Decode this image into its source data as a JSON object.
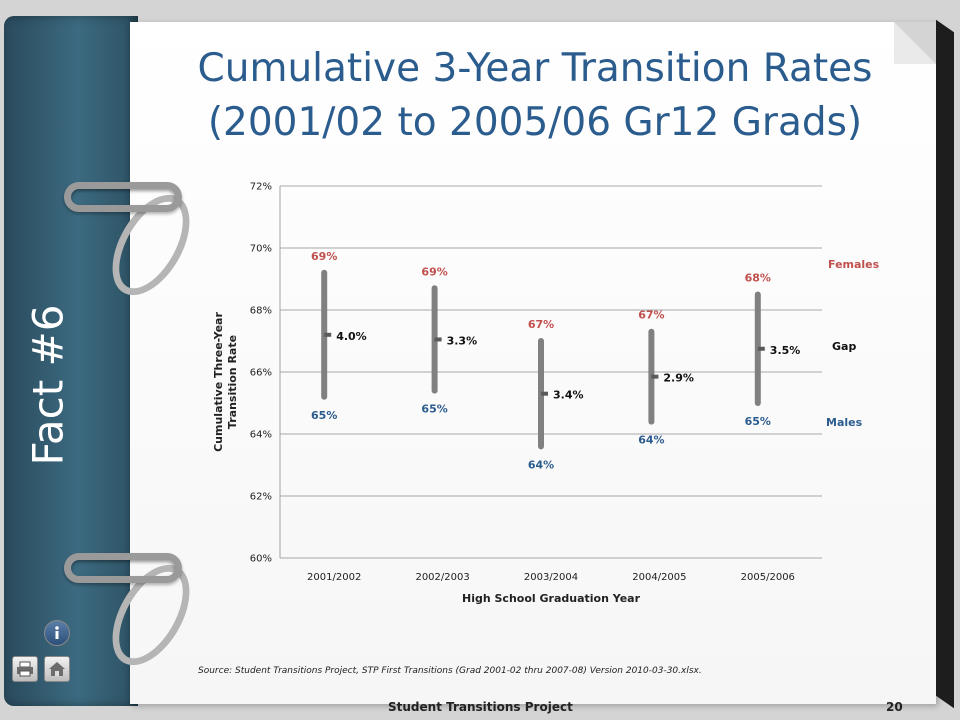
{
  "sidebar": {
    "fact_label": "Fact #6"
  },
  "title": {
    "line1": "Cumulative 3-Year Transition Rates",
    "line2": "(2001/02 to 2005/06 Gr12 Grads)"
  },
  "chart_data": {
    "type": "range",
    "categories": [
      "2001/2002",
      "2002/2003",
      "2003/2004",
      "2004/2005",
      "2005/2006"
    ],
    "series": [
      {
        "name": "Females",
        "values": [
          69.2,
          68.7,
          67.0,
          67.3,
          68.5
        ],
        "labels": [
          "69%",
          "69%",
          "67%",
          "67%",
          "68%"
        ],
        "color": "#c0504d"
      },
      {
        "name": "Males",
        "values": [
          65.2,
          65.4,
          63.6,
          64.4,
          65.0
        ],
        "labels": [
          "65%",
          "65%",
          "64%",
          "64%",
          "65%"
        ],
        "color": "#2b5c8e"
      },
      {
        "name": "Gap",
        "values": [
          4.0,
          3.3,
          3.4,
          2.9,
          3.5
        ],
        "labels": [
          "4.0%",
          "3.3%",
          "3.4%",
          "2.9%",
          "3.5%"
        ],
        "color": "#111111"
      }
    ],
    "xlabel": "High School Graduation Year",
    "ylabel": "Cumulative Three-Year Transition Rate",
    "ylim": [
      60,
      72
    ],
    "yticks": [
      "60%",
      "62%",
      "64%",
      "66%",
      "68%",
      "70%",
      "72%"
    ],
    "grid": true,
    "legend_position": "right"
  },
  "source": "Source:  Student Transitions Project, STP First Transitions (Grad 2001-02 thru 2007-08) Version 2010-03-30.xlsx.",
  "footer": {
    "name": "Student Transitions Project",
    "page": "20"
  },
  "icons": {
    "info": "info-icon",
    "print": "printer-icon",
    "home": "home-icon"
  },
  "colors": {
    "title": "#2b5c8e",
    "females": "#c0504d",
    "males": "#2b5c8e",
    "bar": "#808080",
    "binder": "#3c6a80"
  }
}
